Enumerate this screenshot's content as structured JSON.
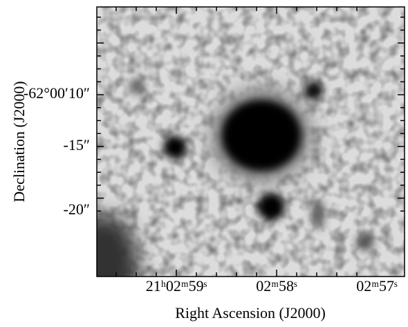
{
  "figure": {
    "x_axis": {
      "label": "Right Ascension (J2000)",
      "ticks": [
        "21ʰ02ᵐ59ˢ",
        "02ᵐ58ˢ",
        "02ᵐ57ˢ"
      ]
    },
    "y_axis": {
      "label": "Declination (J2000)",
      "ticks": [
        "-62°00′10″",
        "-15″",
        "-20″"
      ]
    }
  }
}
